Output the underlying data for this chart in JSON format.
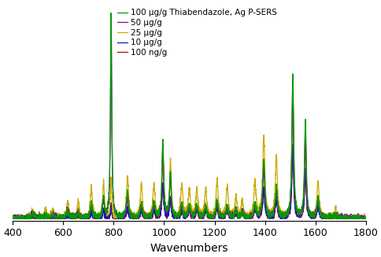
{
  "xlabel": "Wavenumbers",
  "xlim": [
    400,
    1800
  ],
  "ylim": [
    -0.01,
    1.05
  ],
  "xticks": [
    400,
    600,
    800,
    1000,
    1200,
    1400,
    1600,
    1800
  ],
  "legend_entries": [
    "100 μg/g Thiabendazole, Ag P-SERS",
    "50 μg/g",
    "25 μg/g",
    "10 μg/g",
    "100 ng/g"
  ],
  "colors": {
    "100ug": "#009900",
    "50ug": "#880099",
    "25ug": "#ccaa00",
    "10ug": "#1111cc",
    "100ng": "#aa1100"
  },
  "peaks": {
    "centers": [
      478,
      530,
      560,
      618,
      660,
      712,
      760,
      790,
      855,
      910,
      960,
      995,
      1025,
      1070,
      1100,
      1130,
      1165,
      1210,
      1250,
      1285,
      1310,
      1360,
      1395,
      1445,
      1510,
      1560,
      1610,
      1680
    ],
    "widths": [
      12,
      10,
      10,
      10,
      10,
      10,
      8,
      6,
      10,
      10,
      10,
      8,
      8,
      10,
      10,
      10,
      10,
      10,
      10,
      10,
      10,
      10,
      10,
      10,
      8,
      8,
      10,
      10
    ],
    "100ug": [
      0.02,
      0.02,
      0.02,
      0.04,
      0.03,
      0.07,
      0.1,
      1.0,
      0.12,
      0.07,
      0.07,
      0.38,
      0.22,
      0.07,
      0.06,
      0.06,
      0.06,
      0.08,
      0.06,
      0.04,
      0.03,
      0.07,
      0.28,
      0.15,
      0.7,
      0.48,
      0.1,
      0.02
    ],
    "50ug": [
      0.02,
      0.02,
      0.02,
      0.04,
      0.03,
      0.06,
      0.09,
      0.95,
      0.1,
      0.06,
      0.06,
      0.34,
      0.2,
      0.06,
      0.05,
      0.05,
      0.05,
      0.07,
      0.05,
      0.04,
      0.03,
      0.06,
      0.25,
      0.13,
      0.65,
      0.42,
      0.09,
      0.02
    ],
    "25ug": [
      0.04,
      0.05,
      0.04,
      0.08,
      0.07,
      0.14,
      0.18,
      0.2,
      0.2,
      0.16,
      0.16,
      0.35,
      0.28,
      0.16,
      0.14,
      0.14,
      0.14,
      0.18,
      0.15,
      0.1,
      0.08,
      0.18,
      0.4,
      0.3,
      0.65,
      0.42,
      0.18,
      0.05
    ],
    "10ug": [
      0.01,
      0.01,
      0.01,
      0.02,
      0.02,
      0.03,
      0.04,
      0.06,
      0.05,
      0.04,
      0.04,
      0.17,
      0.1,
      0.04,
      0.04,
      0.04,
      0.04,
      0.05,
      0.04,
      0.03,
      0.03,
      0.05,
      0.14,
      0.09,
      0.36,
      0.24,
      0.06,
      0.01
    ],
    "100ng": [
      0.01,
      0.01,
      0.01,
      0.02,
      0.02,
      0.03,
      0.04,
      0.06,
      0.05,
      0.04,
      0.04,
      0.16,
      0.09,
      0.04,
      0.04,
      0.04,
      0.04,
      0.05,
      0.04,
      0.03,
      0.03,
      0.05,
      0.13,
      0.08,
      0.34,
      0.22,
      0.06,
      0.01
    ]
  },
  "noise_seed": 42,
  "noise_level": 0.008,
  "background_color": "#ffffff",
  "linewidth": 0.9,
  "legend_fontsize": 7.5,
  "axis_fontsize": 10,
  "tick_fontsize": 9
}
